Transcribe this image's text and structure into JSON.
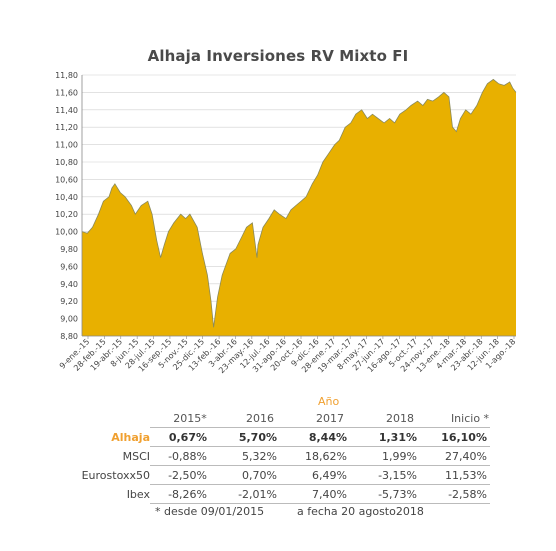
{
  "chart_data": {
    "type": "area",
    "title": "Alhaja Inversiones  RV Mixto  FI",
    "ylim": [
      8.8,
      11.8
    ],
    "yticks": [
      "8,80",
      "9,00",
      "9,20",
      "9,40",
      "9,60",
      "9,80",
      "10,00",
      "10,20",
      "10,40",
      "10,60",
      "10,80",
      "11,00",
      "11,20",
      "11,40",
      "11,60",
      "11,80"
    ],
    "xticks": [
      "9-ene.-15",
      "28-feb.-15",
      "19-abr.-15",
      "8-jun.-15",
      "28-jul.-15",
      "16-sep.-15",
      "5-nov.-15",
      "25-dic.-15",
      "13-feb.-16",
      "3-abr.-16",
      "23-may.-16",
      "12-jul.-16",
      "31-ago.-16",
      "20-oct.-16",
      "9-dic.-16",
      "28-ene.-17",
      "19-mar.-17",
      "8-may.-17",
      "27-jun.-17",
      "16-ago.-17",
      "5-oct.-17",
      "24-nov.-17",
      "13-ene.-18",
      "4-mar.-18",
      "23-abr.-18",
      "12-jun.-18",
      "1-ago.-18"
    ],
    "fill_color": "#e8b000",
    "line_color": "#8a8a5a",
    "x": [
      "2015-01-09",
      "2015-01-25",
      "2015-02-10",
      "2015-02-28",
      "2015-03-15",
      "2015-04-01",
      "2015-04-10",
      "2015-04-19",
      "2015-05-05",
      "2015-05-20",
      "2015-06-08",
      "2015-06-20",
      "2015-07-08",
      "2015-07-28",
      "2015-08-10",
      "2015-08-24",
      "2015-09-05",
      "2015-09-16",
      "2015-09-29",
      "2015-10-15",
      "2015-11-05",
      "2015-11-20",
      "2015-12-03",
      "2015-12-25",
      "2016-01-10",
      "2016-01-25",
      "2016-02-05",
      "2016-02-13",
      "2016-02-25",
      "2016-03-10",
      "2016-04-03",
      "2016-04-20",
      "2016-05-10",
      "2016-05-23",
      "2016-06-10",
      "2016-06-24",
      "2016-06-27",
      "2016-07-12",
      "2016-07-30",
      "2016-08-15",
      "2016-08-31",
      "2016-09-20",
      "2016-10-05",
      "2016-10-20",
      "2016-11-05",
      "2016-11-20",
      "2016-12-09",
      "2016-12-25",
      "2017-01-10",
      "2017-01-28",
      "2017-02-15",
      "2017-03-01",
      "2017-03-19",
      "2017-04-05",
      "2017-04-20",
      "2017-05-08",
      "2017-05-25",
      "2017-06-10",
      "2017-06-27",
      "2017-07-15",
      "2017-08-01",
      "2017-08-16",
      "2017-09-01",
      "2017-09-20",
      "2017-10-05",
      "2017-10-25",
      "2017-11-10",
      "2017-11-24",
      "2017-12-10",
      "2017-12-28",
      "2018-01-13",
      "2018-01-28",
      "2018-02-08",
      "2018-02-20",
      "2018-03-04",
      "2018-03-20",
      "2018-04-05",
      "2018-04-23",
      "2018-05-10",
      "2018-05-25",
      "2018-06-12",
      "2018-06-28",
      "2018-07-15",
      "2018-08-01",
      "2018-08-10",
      "2018-08-20"
    ],
    "y": [
      10.0,
      9.98,
      10.05,
      10.2,
      10.35,
      10.4,
      10.5,
      10.55,
      10.45,
      10.4,
      10.3,
      10.2,
      10.3,
      10.35,
      10.2,
      9.9,
      9.7,
      9.85,
      10.0,
      10.1,
      10.2,
      10.15,
      10.2,
      10.05,
      9.75,
      9.5,
      9.2,
      8.9,
      9.25,
      9.5,
      9.75,
      9.8,
      9.95,
      10.05,
      10.1,
      9.7,
      9.85,
      10.05,
      10.15,
      10.25,
      10.2,
      10.15,
      10.25,
      10.3,
      10.35,
      10.4,
      10.55,
      10.65,
      10.8,
      10.9,
      11.0,
      11.05,
      11.2,
      11.25,
      11.35,
      11.4,
      11.3,
      11.35,
      11.3,
      11.25,
      11.3,
      11.25,
      11.35,
      11.4,
      11.45,
      11.5,
      11.45,
      11.52,
      11.5,
      11.55,
      11.6,
      11.55,
      11.2,
      11.15,
      11.3,
      11.4,
      11.35,
      11.45,
      11.6,
      11.7,
      11.75,
      11.7,
      11.68,
      11.72,
      11.65,
      11.6
    ]
  },
  "table": {
    "group_header": "Año",
    "columns": [
      "2015*",
      "2016",
      "2017",
      "2018",
      "Inicio *"
    ],
    "rows": [
      {
        "label": "Alhaja",
        "values": [
          "0,67%",
          "5,70%",
          "8,44%",
          "1,31%",
          "16,10%"
        ]
      },
      {
        "label": "MSCI",
        "values": [
          "-0,88%",
          "5,32%",
          "18,62%",
          "1,99%",
          "27,40%"
        ]
      },
      {
        "label": "Eurostoxx50",
        "values": [
          "-2,50%",
          "0,70%",
          "6,49%",
          "-3,15%",
          "11,53%"
        ]
      },
      {
        "label": "Ibex",
        "values": [
          "-8,26%",
          "-2,01%",
          "7,40%",
          "-5,73%",
          "-2,58%"
        ]
      }
    ],
    "footnote_left": "* desde 09/01/2015",
    "footnote_right": "a fecha 20 agosto2018",
    "header_color": "#f0a030"
  }
}
